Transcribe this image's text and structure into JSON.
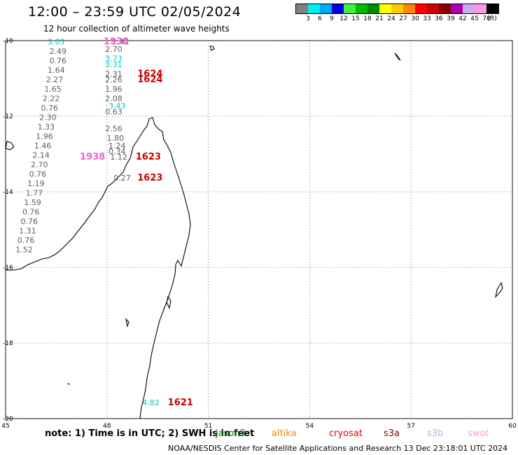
{
  "title": "12:00 – 23:59 UTC 02/05/2024",
  "subtitle": "12 hour collection of altimeter wave heights",
  "legend": {
    "unit": "(ft)",
    "bins": [
      {
        "label": "3",
        "color": "#808080"
      },
      {
        "label": "6",
        "color": "#00eeee"
      },
      {
        "label": "9",
        "color": "#00aaee"
      },
      {
        "label": "12",
        "color": "#0000dd"
      },
      {
        "label": "15",
        "color": "#44ee44"
      },
      {
        "label": "18",
        "color": "#00bb00"
      },
      {
        "label": "21",
        "color": "#008800"
      },
      {
        "label": "24",
        "color": "#ffff00"
      },
      {
        "label": "27",
        "color": "#ffcc00"
      },
      {
        "label": "30",
        "color": "#ff8800"
      },
      {
        "label": "33",
        "color": "#ff0000"
      },
      {
        "label": "36",
        "color": "#cc0000"
      },
      {
        "label": "39",
        "color": "#880000"
      },
      {
        "label": "42",
        "color": "#aa00aa"
      },
      {
        "label": "45",
        "color": "#ccaaee"
      },
      {
        "label": "70",
        "color": "#ff99dd"
      },
      {
        "label": "",
        "color": "#000000"
      }
    ]
  },
  "map": {
    "lon_ticks": [
      "45",
      "48",
      "51",
      "54",
      "57",
      "60"
    ],
    "lat_ticks": [
      "-10",
      "-12",
      "-14",
      "-16",
      "-18",
      "-20"
    ],
    "lon_range": [
      45,
      60
    ],
    "lat_range": [
      -20,
      -10
    ],
    "pass_times": [
      {
        "label": "1938",
        "color": "#ee66cc",
        "lon": 47.9,
        "lat": -10.1
      },
      {
        "label": "1624",
        "color": "#cc0000",
        "lon": 48.9,
        "lat": -10.95
      },
      {
        "label": "1624",
        "color": "#cc0000",
        "lon": 48.9,
        "lat": -11.1
      },
      {
        "label": "1938",
        "color": "#ee66cc",
        "lon": 47.2,
        "lat": -13.15
      },
      {
        "label": "1623",
        "color": "#cc0000",
        "lon": 48.85,
        "lat": -13.15
      },
      {
        "label": "1623",
        "color": "#cc0000",
        "lon": 48.9,
        "lat": -13.7
      },
      {
        "label": "1621",
        "color": "#cc0000",
        "lon": 49.8,
        "lat": -19.65
      }
    ],
    "observations": [
      {
        "v": "3.05",
        "color": "#00cccc",
        "lon": 46.5,
        "lat": -10.1
      },
      {
        "v": "2.49",
        "color": "#606060",
        "lon": 46.55,
        "lat": -10.35
      },
      {
        "v": "0.76",
        "color": "#606060",
        "lon": 46.55,
        "lat": -10.6
      },
      {
        "v": "1.64",
        "color": "#606060",
        "lon": 46.5,
        "lat": -10.85
      },
      {
        "v": "2.27",
        "color": "#606060",
        "lon": 46.45,
        "lat": -11.1
      },
      {
        "v": "1.65",
        "color": "#606060",
        "lon": 46.4,
        "lat": -11.35
      },
      {
        "v": "2.22",
        "color": "#606060",
        "lon": 46.35,
        "lat": -11.6
      },
      {
        "v": "0.76",
        "color": "#606060",
        "lon": 46.3,
        "lat": -11.85
      },
      {
        "v": "2.30",
        "color": "#606060",
        "lon": 46.25,
        "lat": -12.1
      },
      {
        "v": "1.33",
        "color": "#606060",
        "lon": 46.2,
        "lat": -12.35
      },
      {
        "v": "1.96",
        "color": "#606060",
        "lon": 46.15,
        "lat": -12.6
      },
      {
        "v": "1.46",
        "color": "#606060",
        "lon": 46.1,
        "lat": -12.85
      },
      {
        "v": "2.14",
        "color": "#606060",
        "lon": 46.05,
        "lat": -13.1
      },
      {
        "v": "2.70",
        "color": "#606060",
        "lon": 46.0,
        "lat": -13.35
      },
      {
        "v": "0.76",
        "color": "#606060",
        "lon": 45.95,
        "lat": -13.6
      },
      {
        "v": "1.19",
        "color": "#606060",
        "lon": 45.9,
        "lat": -13.85
      },
      {
        "v": "1.77",
        "color": "#606060",
        "lon": 45.85,
        "lat": -14.1
      },
      {
        "v": "1.59",
        "color": "#606060",
        "lon": 45.8,
        "lat": -14.35
      },
      {
        "v": "0.76",
        "color": "#606060",
        "lon": 45.75,
        "lat": -14.6
      },
      {
        "v": "0.76",
        "color": "#606060",
        "lon": 45.7,
        "lat": -14.85
      },
      {
        "v": "1.31",
        "color": "#606060",
        "lon": 45.65,
        "lat": -15.1
      },
      {
        "v": "0.76",
        "color": "#606060",
        "lon": 45.6,
        "lat": -15.35
      },
      {
        "v": "1.52",
        "color": "#606060",
        "lon": 45.55,
        "lat": -15.6
      },
      {
        "v": "2.42",
        "color": "#606060",
        "lon": 48.4,
        "lat": -10.1
      },
      {
        "v": "2.70",
        "color": "#606060",
        "lon": 48.2,
        "lat": -10.3
      },
      {
        "v": "3.73",
        "color": "#00cccc",
        "lon": 48.2,
        "lat": -10.55
      },
      {
        "v": "3.31",
        "color": "#00cccc",
        "lon": 48.2,
        "lat": -10.7
      },
      {
        "v": "2.31",
        "color": "#606060",
        "lon": 48.2,
        "lat": -10.95
      },
      {
        "v": "2.26",
        "color": "#606060",
        "lon": 48.2,
        "lat": -11.1
      },
      {
        "v": "1.96",
        "color": "#606060",
        "lon": 48.2,
        "lat": -11.35
      },
      {
        "v": "2.08",
        "color": "#606060",
        "lon": 48.2,
        "lat": -11.6
      },
      {
        "v": "3.43",
        "color": "#00cccc",
        "lon": 48.3,
        "lat": -11.8
      },
      {
        "v": "0.63",
        "color": "#606060",
        "lon": 48.2,
        "lat": -11.95
      },
      {
        "v": "2.56",
        "color": "#606060",
        "lon": 48.2,
        "lat": -12.4
      },
      {
        "v": "1.80",
        "color": "#606060",
        "lon": 48.25,
        "lat": -12.65
      },
      {
        "v": "1.24",
        "color": "#606060",
        "lon": 48.3,
        "lat": -12.85
      },
      {
        "v": "0.34",
        "color": "#606060",
        "lon": 48.3,
        "lat": -13.0
      },
      {
        "v": "1.12",
        "color": "#606060",
        "lon": 48.35,
        "lat": -13.15
      },
      {
        "v": "0.27",
        "color": "#606060",
        "lon": 48.45,
        "lat": -13.7
      },
      {
        "v": "4.82",
        "color": "#00cccc",
        "lon": 49.3,
        "lat": -19.65
      }
    ]
  },
  "note": "note:  1) Time is in UTC; 2) SWH is in feet",
  "satellites": [
    {
      "name": "jason3",
      "color": "#008800"
    },
    {
      "name": "altika",
      "color": "#ff8800"
    },
    {
      "name": "cryosat",
      "color": "#ee0000"
    },
    {
      "name": "s3a",
      "color": "#880000"
    },
    {
      "name": "s3b",
      "color": "#bbaaee"
    },
    {
      "name": "swot",
      "color": "#ff99dd"
    }
  ],
  "footer": "NOAA/NESDIS Center for Satellite Applications and Research    13 Dec 23:18:01 UTC 2024"
}
